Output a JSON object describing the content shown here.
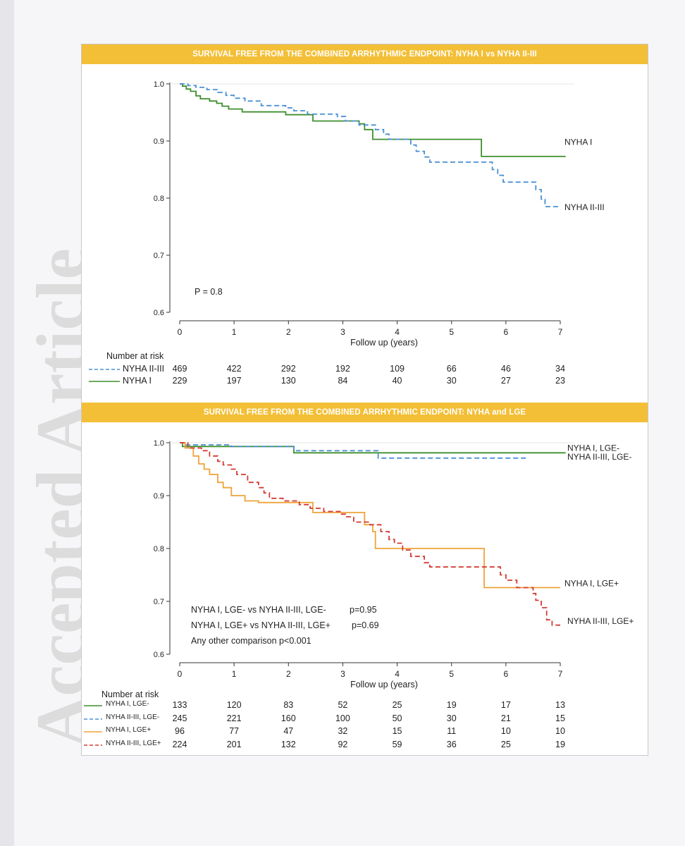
{
  "watermark": "Accepted Article",
  "figure": {
    "panel1": {
      "banner": "SURVIVAL FREE FROM THE COMBINED ARRHYTHMIC ENDPOINT: NYHA I vs NYHA II-III",
      "pvalue_text": "P = 0.8",
      "risk_title": "Number at risk"
    },
    "panel2": {
      "banner": "SURVIVAL FREE FROM THE COMBINED ARRHYTHMIC ENDPOINT: NYHA and LGE",
      "annotations": [
        "NYHA I, LGE- vs NYHA II-III, LGE-",
        "p=0.95",
        "NYHA I, LGE+ vs NYHA II-III, LGE+",
        "p=0.69",
        "Any other comparison  p<0.001"
      ],
      "risk_title": "Number at risk"
    }
  },
  "chart_data": [
    {
      "type": "line",
      "title": "SURVIVAL FREE FROM THE COMBINED ARRHYTHMIC ENDPOINT: NYHA I vs NYHA II-III",
      "xlabel": "Follow up (years)",
      "ylabel": "",
      "xlim": [
        0,
        7
      ],
      "ylim": [
        0.6,
        1.0
      ],
      "xticks": [
        "0",
        "1",
        "2",
        "3",
        "4",
        "5",
        "6",
        "7"
      ],
      "yticks": [
        "0.6",
        "0.7",
        "0.8",
        "0.9",
        "1.0"
      ],
      "step": true,
      "series": [
        {
          "name": "NYHA I",
          "color": "#3f8f2c",
          "dash": false,
          "points": [
            [
              0,
              1.0
            ],
            [
              0.05,
              0.996
            ],
            [
              0.12,
              0.991
            ],
            [
              0.2,
              0.987
            ],
            [
              0.3,
              0.979
            ],
            [
              0.38,
              0.974
            ],
            [
              0.55,
              0.97
            ],
            [
              0.68,
              0.966
            ],
            [
              0.78,
              0.961
            ],
            [
              0.9,
              0.956
            ],
            [
              1.15,
              0.951
            ],
            [
              1.55,
              0.951
            ],
            [
              1.95,
              0.946
            ],
            [
              2.45,
              0.935
            ],
            [
              2.65,
              0.935
            ],
            [
              3.3,
              0.93
            ],
            [
              3.4,
              0.92
            ],
            [
              3.55,
              0.903
            ],
            [
              4.4,
              0.903
            ],
            [
              5.55,
              0.903
            ],
            [
              5.55,
              0.873
            ],
            [
              7.1,
              0.873
            ]
          ],
          "label_end": "NYHA I"
        },
        {
          "name": "NYHA II-III",
          "color": "#4a8fd4",
          "dash": true,
          "points": [
            [
              0,
              1.0
            ],
            [
              0.15,
              0.997
            ],
            [
              0.3,
              0.994
            ],
            [
              0.5,
              0.99
            ],
            [
              0.7,
              0.985
            ],
            [
              0.85,
              0.98
            ],
            [
              1.0,
              0.975
            ],
            [
              1.2,
              0.97
            ],
            [
              1.5,
              0.962
            ],
            [
              1.95,
              0.958
            ],
            [
              2.1,
              0.953
            ],
            [
              2.35,
              0.947
            ],
            [
              2.9,
              0.943
            ],
            [
              3.05,
              0.935
            ],
            [
              3.3,
              0.928
            ],
            [
              3.6,
              0.92
            ],
            [
              3.75,
              0.912
            ],
            [
              3.85,
              0.903
            ],
            [
              4.25,
              0.893
            ],
            [
              4.35,
              0.882
            ],
            [
              4.5,
              0.872
            ],
            [
              4.6,
              0.863
            ],
            [
              5.6,
              0.863
            ],
            [
              5.75,
              0.85
            ],
            [
              5.85,
              0.84
            ],
            [
              5.95,
              0.828
            ],
            [
              6.4,
              0.828
            ],
            [
              6.55,
              0.815
            ],
            [
              6.65,
              0.798
            ],
            [
              6.72,
              0.785
            ],
            [
              7.0,
              0.785
            ]
          ],
          "label_end": "NYHA II-III"
        }
      ],
      "risk_table": {
        "times": [
          0,
          1,
          2,
          3,
          4,
          5,
          6,
          7
        ],
        "rows": [
          {
            "label": "NYHA II-III",
            "dash": true,
            "color": "#4a8fd4",
            "values": [
              "469",
              "422",
              "292",
              "192",
              "109",
              "66",
              "46",
              "34"
            ]
          },
          {
            "label": "NYHA I",
            "dash": false,
            "color": "#3f8f2c",
            "values": [
              "229",
              "197",
              "130",
              "84",
              "40",
              "30",
              "27",
              "23"
            ]
          }
        ]
      }
    },
    {
      "type": "line",
      "title": "SURVIVAL FREE FROM THE COMBINED ARRHYTHMIC ENDPOINT: NYHA and LGE",
      "xlabel": "Follow up (years)",
      "ylabel": "",
      "xlim": [
        0,
        7
      ],
      "ylim": [
        0.6,
        1.0
      ],
      "xticks": [
        "0",
        "1",
        "2",
        "3",
        "4",
        "5",
        "6",
        "7"
      ],
      "yticks": [
        "0.6",
        "0.7",
        "0.8",
        "0.9",
        "1.0"
      ],
      "step": true,
      "series": [
        {
          "name": "NYHA I, LGE-",
          "color": "#3f8f2c",
          "dash": false,
          "points": [
            [
              0,
              1.0
            ],
            [
              0.05,
              0.993
            ],
            [
              2.1,
              0.993
            ],
            [
              2.1,
              0.981
            ],
            [
              7.1,
              0.981
            ]
          ],
          "label_end": "NYHA I, LGE-"
        },
        {
          "name": "NYHA II-III, LGE-",
          "color": "#4a8fd4",
          "dash": true,
          "points": [
            [
              0,
              1.0
            ],
            [
              0.1,
              0.996
            ],
            [
              0.95,
              0.993
            ],
            [
              2.1,
              0.993
            ],
            [
              2.1,
              0.985
            ],
            [
              3.65,
              0.985
            ],
            [
              3.65,
              0.971
            ],
            [
              6.4,
              0.971
            ]
          ],
          "label_end": "NYHA II-III, LGE-"
        },
        {
          "name": "NYHA I, LGE+",
          "color": "#f0a33a",
          "dash": false,
          "points": [
            [
              0,
              1.0
            ],
            [
              0.1,
              0.99
            ],
            [
              0.25,
              0.975
            ],
            [
              0.35,
              0.96
            ],
            [
              0.45,
              0.95
            ],
            [
              0.55,
              0.94
            ],
            [
              0.7,
              0.925
            ],
            [
              0.8,
              0.915
            ],
            [
              0.95,
              0.9
            ],
            [
              1.1,
              0.9
            ],
            [
              1.2,
              0.89
            ],
            [
              1.45,
              0.887
            ],
            [
              2.4,
              0.887
            ],
            [
              2.45,
              0.868
            ],
            [
              2.7,
              0.868
            ],
            [
              3.35,
              0.868
            ],
            [
              3.4,
              0.845
            ],
            [
              3.55,
              0.832
            ],
            [
              3.6,
              0.8
            ],
            [
              5.55,
              0.8
            ],
            [
              5.6,
              0.726
            ],
            [
              7.0,
              0.726
            ]
          ],
          "label_end": "NYHA I, LGE+"
        },
        {
          "name": "NYHA II-III, LGE+",
          "color": "#d23b33",
          "dash": true,
          "points": [
            [
              0,
              1.0
            ],
            [
              0.15,
              0.99
            ],
            [
              0.4,
              0.985
            ],
            [
              0.55,
              0.975
            ],
            [
              0.7,
              0.965
            ],
            [
              0.8,
              0.958
            ],
            [
              0.95,
              0.95
            ],
            [
              1.05,
              0.94
            ],
            [
              1.25,
              0.925
            ],
            [
              1.45,
              0.915
            ],
            [
              1.55,
              0.905
            ],
            [
              1.65,
              0.895
            ],
            [
              1.9,
              0.89
            ],
            [
              2.2,
              0.883
            ],
            [
              2.4,
              0.876
            ],
            [
              2.65,
              0.87
            ],
            [
              2.95,
              0.865
            ],
            [
              3.05,
              0.86
            ],
            [
              3.2,
              0.85
            ],
            [
              3.5,
              0.845
            ],
            [
              3.7,
              0.832
            ],
            [
              3.85,
              0.817
            ],
            [
              3.95,
              0.81
            ],
            [
              4.1,
              0.797
            ],
            [
              4.25,
              0.785
            ],
            [
              4.5,
              0.773
            ],
            [
              4.6,
              0.765
            ],
            [
              5.75,
              0.765
            ],
            [
              5.9,
              0.75
            ],
            [
              6.0,
              0.74
            ],
            [
              6.2,
              0.726
            ],
            [
              6.5,
              0.715
            ],
            [
              6.55,
              0.702
            ],
            [
              6.65,
              0.688
            ],
            [
              6.75,
              0.665
            ],
            [
              6.85,
              0.655
            ],
            [
              7.0,
              0.655
            ]
          ],
          "label_end": "NYHA II-III, LGE+"
        }
      ],
      "risk_table": {
        "times": [
          0,
          1,
          2,
          3,
          4,
          5,
          6,
          7
        ],
        "rows": [
          {
            "label": "NYHA I, LGE-",
            "dash": false,
            "color": "#3f8f2c",
            "values": [
              "133",
              "120",
              "83",
              "52",
              "25",
              "19",
              "17",
              "13"
            ]
          },
          {
            "label": "NYHA II-III, LGE-",
            "dash": true,
            "color": "#4a8fd4",
            "values": [
              "245",
              "221",
              "160",
              "100",
              "50",
              "30",
              "21",
              "15"
            ]
          },
          {
            "label": "NYHA I, LGE+",
            "dash": false,
            "color": "#f0a33a",
            "values": [
              "96",
              "77",
              "47",
              "32",
              "15",
              "11",
              "10",
              "10"
            ]
          },
          {
            "label": "NYHA II-III, LGE+",
            "dash": true,
            "color": "#d23b33",
            "values": [
              "224",
              "201",
              "132",
              "92",
              "59",
              "36",
              "25",
              "19"
            ]
          }
        ]
      }
    }
  ]
}
